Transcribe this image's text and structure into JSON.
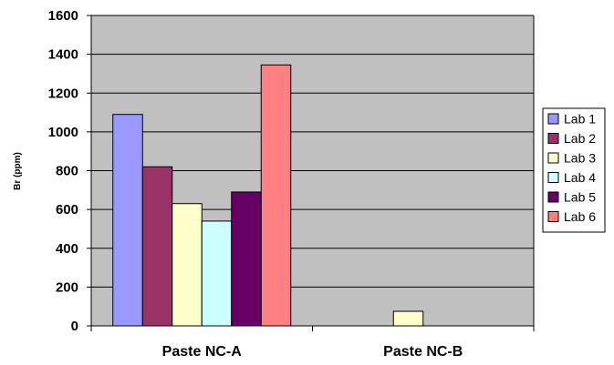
{
  "chart_data": {
    "type": "bar",
    "title": "",
    "xlabel": "",
    "ylabel": "Br (ppm)",
    "categories": [
      "Paste NC-A",
      "Paste NC-B"
    ],
    "ylim": [
      0,
      1600
    ],
    "yticks": [
      0,
      200,
      400,
      600,
      800,
      1000,
      1200,
      1400,
      1600
    ],
    "grid": true,
    "legend_position": "right",
    "plot_background": "#c0c0c0",
    "series": [
      {
        "name": "Lab 1",
        "color": "#9999ff",
        "values": [
          1090,
          0
        ]
      },
      {
        "name": "Lab 2",
        "color": "#993366",
        "values": [
          820,
          0
        ]
      },
      {
        "name": "Lab 3",
        "color": "#ffffcc",
        "values": [
          630,
          75
        ]
      },
      {
        "name": "Lab 4",
        "color": "#ccffff",
        "values": [
          540,
          0
        ]
      },
      {
        "name": "Lab 5",
        "color": "#660066",
        "values": [
          690,
          0
        ]
      },
      {
        "name": "Lab 6",
        "color": "#ff8080",
        "values": [
          1345,
          0
        ]
      }
    ]
  }
}
